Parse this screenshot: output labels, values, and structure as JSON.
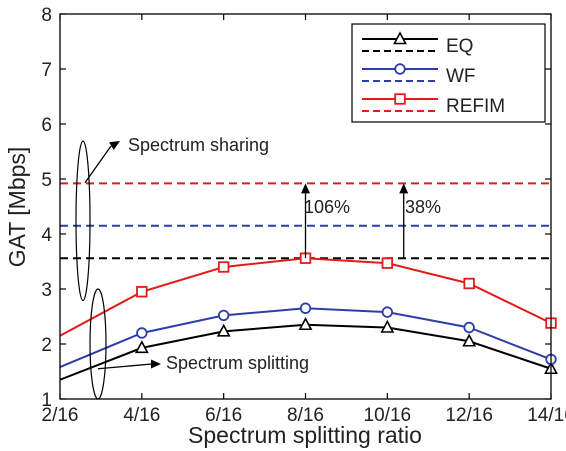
{
  "chart_data": {
    "type": "line",
    "title": "",
    "xlabel": "Spectrum splitting ratio",
    "ylabel": "GAT [Mbps]",
    "x_ticks": [
      "2/16",
      "4/16",
      "6/16",
      "8/16",
      "10/16",
      "12/16",
      "14/16"
    ],
    "x": [
      2,
      4,
      6,
      8,
      10,
      12,
      14
    ],
    "xlim": [
      2,
      14
    ],
    "ylim": [
      1,
      8
    ],
    "y_ticks": [
      "1",
      "2",
      "3",
      "4",
      "5",
      "6",
      "7",
      "8"
    ],
    "grid": false,
    "legend_position": "top-right",
    "series": [
      {
        "name": "EQ",
        "color": "#000000",
        "marker": "triangle",
        "values": [
          1.35,
          1.93,
          2.23,
          2.35,
          2.3,
          2.05,
          1.55
        ]
      },
      {
        "name": "WF",
        "color": "#2c3fa8",
        "marker": "circle",
        "values": [
          1.58,
          2.2,
          2.52,
          2.65,
          2.58,
          2.3,
          1.72
        ]
      },
      {
        "name": "REFIM",
        "color": "#e31b1b",
        "marker": "square",
        "values": [
          2.15,
          2.95,
          3.4,
          3.56,
          3.47,
          3.1,
          2.38
        ]
      }
    ],
    "sharing_lines": [
      {
        "name": "EQ",
        "color": "#000000",
        "value": 3.56
      },
      {
        "name": "WF",
        "color": "#2c3fa8",
        "value": 4.15
      },
      {
        "name": "REFIM",
        "color": "#e31b1b",
        "value": 4.92
      }
    ],
    "annotations": {
      "sharing": "Spectrum sharing",
      "splitting": "Spectrum splitting",
      "gain_1": "106%",
      "gain_2": "38%"
    }
  }
}
